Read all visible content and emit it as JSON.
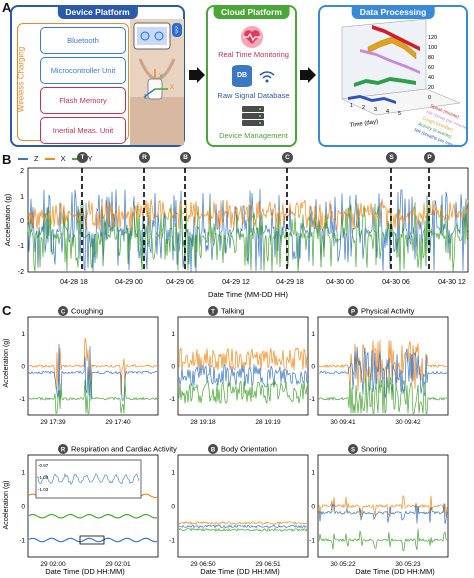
{
  "panels": {
    "a": "A",
    "b": "B",
    "c": "C"
  },
  "device_platform": {
    "title": "Device Platform",
    "wireless_label": "Wireless Charging",
    "units": [
      "Bluetooth",
      "Microcontroller Unit",
      "Flash Memory",
      "Inertial Meas. Unit"
    ],
    "colors": [
      "#3a7bd5",
      "#3a7bd5",
      "#c0305a",
      "#c0305a"
    ],
    "axis_labels": [
      "Y",
      "X",
      "Z"
    ]
  },
  "cloud_platform": {
    "title": "Cloud Platform",
    "items": [
      "Real Time Monitoring",
      "Raw Signal Database",
      "Device Management"
    ],
    "db_label": "DB"
  },
  "data_processing": {
    "title": "Data Processing",
    "z_ticks": [
      "120",
      "100",
      "80",
      "60",
      "40",
      "20",
      "0"
    ],
    "x_ticks": [
      "1",
      "2",
      "3",
      "4",
      "5"
    ],
    "x_label": "Time (day)",
    "legend": [
      "Speak (minute)",
      "HR (beats per minute)",
      "Cough (number)",
      "Activity (# events)",
      "RR (breaths per minute)"
    ],
    "legend_colors": [
      "#d01e2e",
      "#c88ad8",
      "#e0a020",
      "#2e9e4a",
      "#3050c0"
    ]
  },
  "timeline": {
    "legend": [
      "Z",
      "X",
      "Y"
    ],
    "legend_colors": [
      "#3b78c4",
      "#f28a1e",
      "#4aa636"
    ],
    "event_markers": [
      "T",
      "R",
      "B",
      "C",
      "S",
      "P"
    ],
    "y_label": "Acceleration (g)",
    "y_ticks": [
      "2",
      "1",
      "0",
      "-1",
      "-2"
    ],
    "x_ticks": [
      "04-28 18",
      "04-29 00",
      "04-29 06",
      "04-29 12",
      "04-29 18",
      "04-30 00",
      "04-30 06",
      "04-30 12"
    ],
    "x_label": "Date Time (MM-DD HH)"
  },
  "subplots": [
    {
      "marker": "C",
      "title": "Coughing",
      "x_ticks": [
        "29 17:39",
        "29 17:40"
      ]
    },
    {
      "marker": "T",
      "title": "Talking",
      "x_ticks": [
        "28 19:18",
        "28 19:19"
      ]
    },
    {
      "marker": "P",
      "title": "Physical Activity",
      "x_ticks": [
        "30 09:41",
        "30 09:42"
      ]
    },
    {
      "marker": "R",
      "title": "Respiration and Cardiac Activity",
      "x_ticks": [
        "29 02:00",
        "29 02:01"
      ]
    },
    {
      "marker": "B",
      "title": "Body Orientation",
      "x_ticks": [
        "29 06:50",
        "29 06:51"
      ]
    },
    {
      "marker": "S",
      "title": "Snoring",
      "x_ticks": [
        "30 05:22",
        "30 05:23"
      ]
    }
  ],
  "subplot_axes": {
    "y_label": "Acceleration (g)",
    "y_ticks": [
      "1",
      "0",
      "-1"
    ],
    "x_label": "Date Time (DD HH:MM)"
  },
  "inset": {
    "y_ticks": [
      "-0.97",
      "-1.00",
      "-1.03"
    ]
  }
}
